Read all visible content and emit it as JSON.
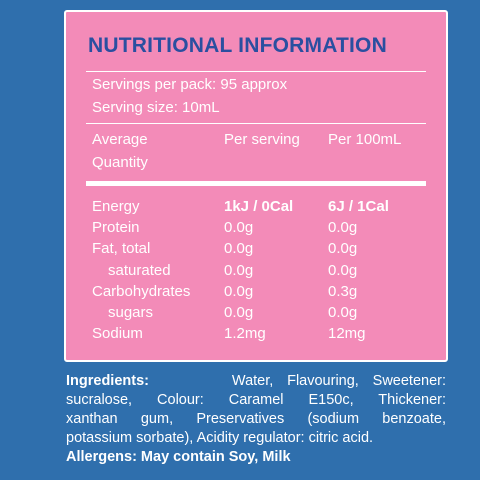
{
  "panel": {
    "title": "NUTRITIONAL INFORMATION",
    "servings_per_pack": "Servings per pack:  95 approx",
    "serving_size": "Serving size:  10mL",
    "headers": {
      "avg": "Average",
      "qty": "Quantity",
      "per_serving": "Per serving",
      "per_100": "Per 100mL"
    },
    "rows": [
      {
        "label": "Energy",
        "serving": "1kJ / 0Cal",
        "per100": "6J / 1Cal"
      },
      {
        "label": "Protein",
        "serving": "0.0g",
        "per100": "0.0g"
      },
      {
        "label": "Fat, total",
        "serving": "0.0g",
        "per100": "0.0g"
      },
      {
        "label": "saturated",
        "serving": "0.0g",
        "per100": "0.0g"
      },
      {
        "label": "Carbohydrates",
        "serving": "0.0g",
        "per100": "0.3g"
      },
      {
        "label": "sugars",
        "serving": "0.0g",
        "per100": "0.0g"
      },
      {
        "label": "Sodium",
        "serving": "1.2mg",
        "per100": "12mg"
      }
    ]
  },
  "ingredients": {
    "heading": "Ingredients:",
    "line1": "Water, Flavouring, Sweetener:",
    "line2": "sucralose, Colour: Caramel E150c, Thickener:",
    "line3": "xanthan gum, Preservatives (sodium benzoate,",
    "line4": "potassium sorbate), Acidity regulator: citric acid.",
    "allergens": "Allergens: May contain Soy, Milk"
  },
  "colors": {
    "background": "#2f6fad",
    "panel": "#f38bb8",
    "title": "#2a4fa0"
  }
}
